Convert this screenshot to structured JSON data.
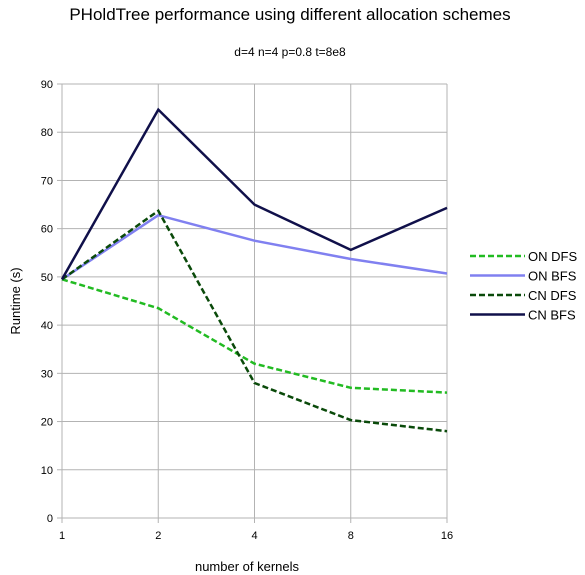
{
  "chart_data": {
    "type": "line",
    "title": "PHoldTree performance using different allocation schemes",
    "subtitle": "d=4 n=4 p=0.8 t=8e8",
    "xlabel": "number of kernels",
    "ylabel": "Runtime (s)",
    "categories": [
      "1",
      "2",
      "4",
      "8",
      "16"
    ],
    "ylim": [
      0,
      90
    ],
    "yticks": [
      0,
      10,
      20,
      30,
      40,
      50,
      60,
      70,
      80,
      90
    ],
    "grid": true,
    "legend_position": "right",
    "series": [
      {
        "name": "ON DFS",
        "values": [
          49.5,
          43.5,
          32.0,
          27.0,
          26.0
        ],
        "color": "#22bb22",
        "dash": "dashed"
      },
      {
        "name": "ON BFS",
        "values": [
          49.5,
          62.8,
          57.5,
          53.7,
          50.7
        ],
        "color": "#8080f0",
        "dash": "solid"
      },
      {
        "name": "CN DFS",
        "values": [
          49.5,
          63.7,
          28.0,
          20.3,
          18.0
        ],
        "color": "#0a4a0a",
        "dash": "dashed"
      },
      {
        "name": "CN BFS",
        "values": [
          49.5,
          84.7,
          65.0,
          55.6,
          64.3
        ],
        "color": "#10104a",
        "dash": "solid"
      }
    ]
  }
}
